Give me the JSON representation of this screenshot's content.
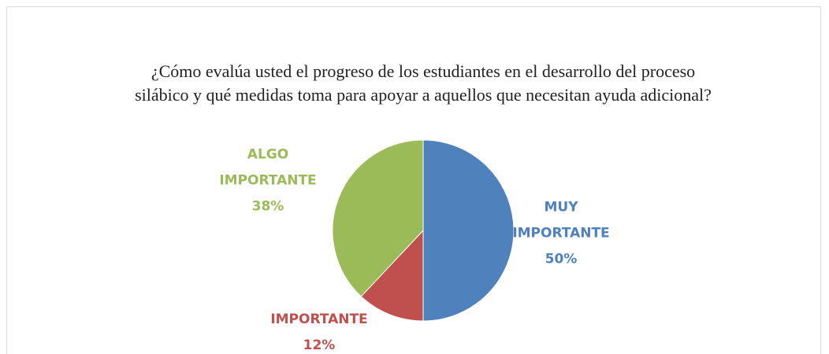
{
  "chart_data": {
    "type": "pie",
    "title": "¿Cómo evalúa usted el progreso de los estudiantes en el desarrollo del proceso silábico y qué medidas toma para apoyar a aquellos que necesitan ayuda adicional?",
    "categories": [
      "MUY IMPORTANTE",
      "IMPORTANTE",
      "ALGO IMPORTANTE"
    ],
    "values": [
      50,
      12,
      38
    ],
    "value_labels": [
      "50%",
      "12%",
      "38%"
    ],
    "colors": [
      "#4f81bd",
      "#c0504d",
      "#9bbb59"
    ]
  }
}
